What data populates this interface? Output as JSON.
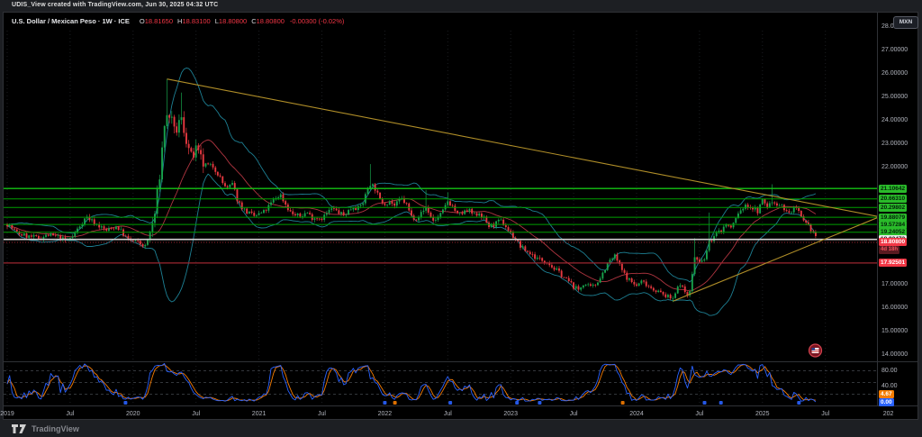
{
  "watermark": "UDIS_View created with TradingView.com, Jun 30, 2025 04:32 UTC",
  "legend": {
    "title": "U.S. Dollar / Mexican Peso · 1W · ICE",
    "ohlc": [
      {
        "label": "O",
        "value": "18.81650"
      },
      {
        "label": "H",
        "value": "18.83100"
      },
      {
        "label": "L",
        "value": "18.80800"
      },
      {
        "label": "C",
        "value": "18.80800"
      }
    ],
    "change": "-0.00300 (-0.02%)"
  },
  "currency_button": "MXN",
  "price_axis": {
    "ticks": [
      "28.00000",
      "27.00000",
      "26.00000",
      "25.00000",
      "24.00000",
      "23.00000",
      "22.00000",
      "17.00000",
      "16.00000",
      "15.00000",
      "14.00000"
    ]
  },
  "time_axis": [
    {
      "label": "2019",
      "t": 2019.0
    },
    {
      "label": "Jul",
      "t": 2019.5
    },
    {
      "label": "2020",
      "t": 2020.0
    },
    {
      "label": "Jul",
      "t": 2020.5
    },
    {
      "label": "2021",
      "t": 2021.0
    },
    {
      "label": "Jul",
      "t": 2021.5
    },
    {
      "label": "2022",
      "t": 2022.0
    },
    {
      "label": "Jul",
      "t": 2022.5
    },
    {
      "label": "2023",
      "t": 2023.0
    },
    {
      "label": "Jul",
      "t": 2023.5
    },
    {
      "label": "2024",
      "t": 2024.0
    },
    {
      "label": "Jul",
      "t": 2024.5
    },
    {
      "label": "2025",
      "t": 2025.0
    },
    {
      "label": "Jul",
      "t": 2025.5
    },
    {
      "label": "202",
      "t": 2026.0
    }
  ],
  "stoch_axis": {
    "ticks": [
      {
        "label": "80.00",
        "v": 80
      },
      {
        "label": "40.00",
        "v": 40
      }
    ],
    "badges": [
      {
        "label": "4.67",
        "bg": "#f57c00"
      },
      {
        "label": "0.00",
        "bg": "#2962ff"
      }
    ]
  },
  "footer": {
    "brand": "TradingView"
  },
  "colors": {
    "up": "#17a14b",
    "down": "#e5383f",
    "bb_band": "#1d7f93",
    "bb_basis": "#b03540",
    "level_green": "#00a000",
    "level_green_bright": "#15c515",
    "level_white": "#cfcfcf",
    "level_red": "#9c2631",
    "trendline": "#b08e28",
    "last_price_line": "#f23645",
    "stoch_k": "#2962ff",
    "stoch_d": "#f57c00",
    "badge_green": "#2abb2a",
    "badge_red": "#f23645",
    "badge_white": "#ececec",
    "countdown_bg": "#5a1a20",
    "countdown_fg": "#f7525f",
    "grid": "#1b1d21",
    "separator": "#2f3136",
    "axis_text": "#b2b5be"
  },
  "chart_data": {
    "type": "candlestick+stochastic",
    "title": "U.S. Dollar / Mexican Peso, weekly, ICE",
    "x_range": [
      2019.0,
      2026.0
    ],
    "price_range_visible": [
      13.8,
      28.2
    ],
    "last_candle": {
      "open": 18.8165,
      "high": 18.831,
      "low": 18.808,
      "close": 18.808
    },
    "close_anchors": [
      [
        2019.0,
        19.6
      ],
      [
        2019.08,
        19.2
      ],
      [
        2019.17,
        19.05
      ],
      [
        2019.25,
        19.0
      ],
      [
        2019.33,
        19.12
      ],
      [
        2019.42,
        19.02
      ],
      [
        2019.46,
        18.88
      ],
      [
        2019.52,
        19.05
      ],
      [
        2019.58,
        19.55
      ],
      [
        2019.63,
        19.9
      ],
      [
        2019.71,
        19.58
      ],
      [
        2019.79,
        19.3
      ],
      [
        2019.87,
        19.5
      ],
      [
        2019.96,
        18.92
      ],
      [
        2020.04,
        18.8
      ],
      [
        2020.1,
        18.62
      ],
      [
        2020.17,
        19.9
      ],
      [
        2020.21,
        21.6
      ],
      [
        2020.25,
        23.9
      ],
      [
        2020.29,
        24.3
      ],
      [
        2020.33,
        23.4
      ],
      [
        2020.38,
        24.1
      ],
      [
        2020.42,
        23.3
      ],
      [
        2020.46,
        22.4
      ],
      [
        2020.5,
        22.7
      ],
      [
        2020.54,
        22.3
      ],
      [
        2020.58,
        21.95
      ],
      [
        2020.63,
        22.1
      ],
      [
        2020.67,
        21.8
      ],
      [
        2020.71,
        21.35
      ],
      [
        2020.75,
        21.1
      ],
      [
        2020.79,
        21.3
      ],
      [
        2020.83,
        20.6
      ],
      [
        2020.88,
        20.2
      ],
      [
        2020.92,
        20.05
      ],
      [
        2020.96,
        19.92
      ],
      [
        2021.04,
        20.1
      ],
      [
        2021.08,
        20.35
      ],
      [
        2021.13,
        20.7
      ],
      [
        2021.17,
        20.85
      ],
      [
        2021.21,
        20.45
      ],
      [
        2021.25,
        20.1
      ],
      [
        2021.29,
        19.95
      ],
      [
        2021.33,
        19.92
      ],
      [
        2021.38,
        20.1
      ],
      [
        2021.42,
        19.88
      ],
      [
        2021.5,
        19.85
      ],
      [
        2021.54,
        20.05
      ],
      [
        2021.58,
        20.25
      ],
      [
        2021.63,
        20.1
      ],
      [
        2021.67,
        19.95
      ],
      [
        2021.71,
        20.15
      ],
      [
        2021.75,
        20.35
      ],
      [
        2021.79,
        20.25
      ],
      [
        2021.83,
        20.55
      ],
      [
        2021.88,
        21.35
      ],
      [
        2021.92,
        21.15
      ],
      [
        2021.96,
        20.6
      ],
      [
        2022.0,
        20.48
      ],
      [
        2022.04,
        20.58
      ],
      [
        2022.08,
        20.35
      ],
      [
        2022.13,
        20.68
      ],
      [
        2022.17,
        20.45
      ],
      [
        2022.21,
        19.92
      ],
      [
        2022.25,
        19.85
      ],
      [
        2022.29,
        20.05
      ],
      [
        2022.33,
        20.3
      ],
      [
        2022.38,
        19.72
      ],
      [
        2022.42,
        19.85
      ],
      [
        2022.46,
        20.1
      ],
      [
        2022.5,
        20.58
      ],
      [
        2022.54,
        20.35
      ],
      [
        2022.58,
        19.95
      ],
      [
        2022.63,
        20.1
      ],
      [
        2022.67,
        20.15
      ],
      [
        2022.71,
        19.95
      ],
      [
        2022.75,
        20.08
      ],
      [
        2022.79,
        19.8
      ],
      [
        2022.83,
        19.48
      ],
      [
        2022.88,
        19.6
      ],
      [
        2022.92,
        19.72
      ],
      [
        2022.96,
        19.5
      ],
      [
        2023.0,
        19.18
      ],
      [
        2023.04,
        18.95
      ],
      [
        2023.08,
        18.6
      ],
      [
        2023.13,
        18.42
      ],
      [
        2023.17,
        18.28
      ],
      [
        2023.21,
        18.12
      ],
      [
        2023.25,
        18.05
      ],
      [
        2023.29,
        18.0
      ],
      [
        2023.33,
        17.75
      ],
      [
        2023.38,
        17.55
      ],
      [
        2023.42,
        17.32
      ],
      [
        2023.46,
        17.15
      ],
      [
        2023.5,
        16.92
      ],
      [
        2023.54,
        16.78
      ],
      [
        2023.58,
        17.05
      ],
      [
        2023.63,
        16.88
      ],
      [
        2023.67,
        16.98
      ],
      [
        2023.71,
        17.3
      ],
      [
        2023.75,
        17.7
      ],
      [
        2023.79,
        18.05
      ],
      [
        2023.83,
        18.22
      ],
      [
        2023.88,
        17.65
      ],
      [
        2023.92,
        17.32
      ],
      [
        2023.96,
        17.12
      ],
      [
        2024.0,
        16.95
      ],
      [
        2024.04,
        17.15
      ],
      [
        2024.08,
        17.02
      ],
      [
        2024.13,
        16.82
      ],
      [
        2024.17,
        16.72
      ],
      [
        2024.21,
        16.58
      ],
      [
        2024.25,
        16.48
      ],
      [
        2024.29,
        16.42
      ],
      [
        2024.33,
        17.05
      ],
      [
        2024.38,
        16.75
      ],
      [
        2024.42,
        16.55
      ],
      [
        2024.46,
        18.2
      ],
      [
        2024.5,
        17.9
      ],
      [
        2024.54,
        18.1
      ],
      [
        2024.58,
        18.85
      ],
      [
        2024.63,
        19.15
      ],
      [
        2024.67,
        19.32
      ],
      [
        2024.71,
        19.58
      ],
      [
        2024.75,
        19.42
      ],
      [
        2024.79,
        19.85
      ],
      [
        2024.83,
        20.22
      ],
      [
        2024.88,
        20.38
      ],
      [
        2024.92,
        20.28
      ],
      [
        2024.96,
        20.12
      ],
      [
        2025.0,
        20.58
      ],
      [
        2025.04,
        20.35
      ],
      [
        2025.08,
        20.55
      ],
      [
        2025.13,
        20.45
      ],
      [
        2025.17,
        20.28
      ],
      [
        2025.21,
        20.02
      ],
      [
        2025.25,
        20.28
      ],
      [
        2025.29,
        20.05
      ],
      [
        2025.33,
        19.62
      ],
      [
        2025.37,
        19.45
      ],
      [
        2025.4,
        19.28
      ],
      [
        2025.42,
        19.12
      ],
      [
        2025.44,
        18.808
      ]
    ],
    "wick_events": [
      {
        "t": 2020.27,
        "high": 25.78
      },
      {
        "t": 2020.38,
        "high": 25.2
      },
      {
        "t": 2021.88,
        "high": 22.15
      },
      {
        "t": 2022.33,
        "high": 21.05
      },
      {
        "t": 2022.5,
        "high": 20.95
      },
      {
        "t": 2024.29,
        "low": 16.26
      },
      {
        "t": 2024.46,
        "high": 18.99
      },
      {
        "t": 2024.58,
        "high": 20.08
      },
      {
        "t": 2025.08,
        "high": 21.29
      }
    ],
    "levels": {
      "resistance": [
        {
          "value": 21.10642,
          "label": "21.10642"
        },
        {
          "value": 20.6631,
          "label": "20.66310"
        },
        {
          "value": 20.29802,
          "label": "20.29802"
        },
        {
          "value": 19.88079,
          "label": "19.88079"
        },
        {
          "value": 19.57284,
          "label": "19.57284"
        },
        {
          "value": 19.24052,
          "label": "19.24052"
        }
      ],
      "neutral": {
        "value": 18.93472,
        "label": "18.93472"
      },
      "support": {
        "value": 17.92501,
        "label": "17.92501"
      },
      "last_price": {
        "value": 18.808,
        "label": "18.80800",
        "countdown": "4d 18h"
      }
    },
    "trendlines": [
      {
        "t1": 2020.27,
        "p1": 25.78,
        "t2": 2025.93,
        "p2": 19.9,
        "kind": "descending"
      },
      {
        "t1": 2024.29,
        "p1": 16.3,
        "t2": 2025.93,
        "p2": 19.9,
        "kind": "ascending"
      }
    ],
    "bollinger": {
      "period": 20,
      "stdev_mult": 2
    },
    "stochastic": {
      "k_period": 14,
      "d_period": 3,
      "upper_band": 80,
      "middle_band": 50,
      "lower_band": 20,
      "last_k": "0.00",
      "last_d": "4.67"
    },
    "event_markers": [
      {
        "t": 2019.94,
        "c": "#2962ff"
      },
      {
        "t": 2022.0,
        "c": "#2962ff"
      },
      {
        "t": 2022.08,
        "c": "#f57c00"
      },
      {
        "t": 2022.52,
        "c": "#2962ff"
      },
      {
        "t": 2023.05,
        "c": "#2962ff"
      },
      {
        "t": 2023.23,
        "c": "#2962ff"
      },
      {
        "t": 2023.89,
        "c": "#f57c00"
      },
      {
        "t": 2024.54,
        "c": "#2962ff"
      },
      {
        "t": 2024.67,
        "c": "#2962ff"
      },
      {
        "t": 2025.29,
        "c": "#2962ff"
      }
    ],
    "flag_event_t": 2025.42
  }
}
